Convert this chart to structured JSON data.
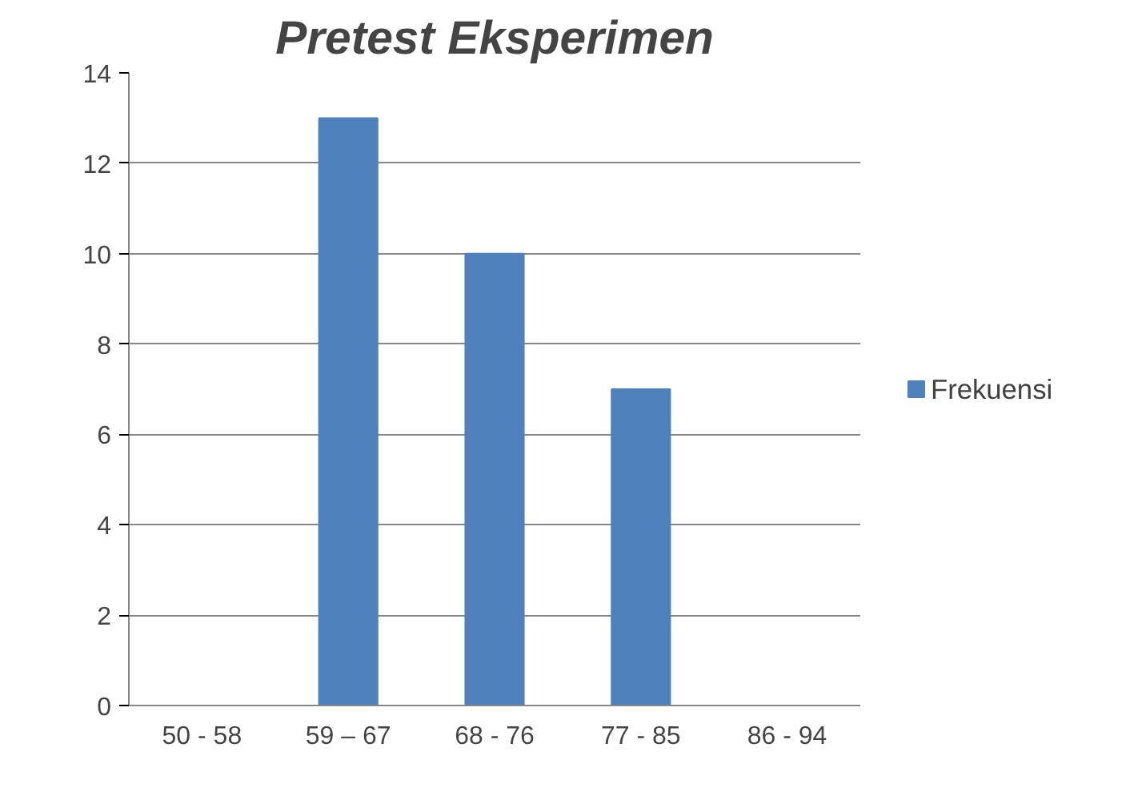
{
  "chart_data": {
    "type": "bar",
    "title": "Pretest Eksperimen",
    "categories": [
      "50 - 58",
      "59 – 67",
      "68 - 76",
      "77 - 85",
      "86 - 94"
    ],
    "series": [
      {
        "name": "Frekuensi",
        "color": "#4f81bd",
        "values": [
          0,
          13,
          10,
          7,
          0
        ]
      }
    ],
    "ylim": [
      0,
      14
    ],
    "yticks": [
      0,
      2,
      4,
      6,
      8,
      10,
      12,
      14
    ],
    "grid": "y",
    "legend": "right"
  }
}
